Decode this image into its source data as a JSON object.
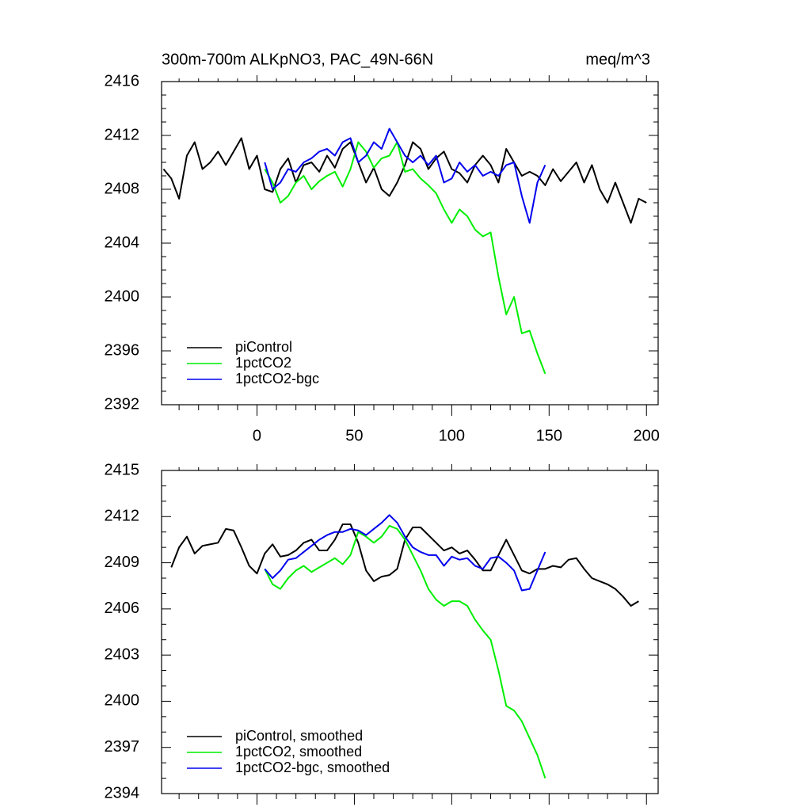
{
  "chart_data": [
    {
      "type": "line",
      "title": "300m-700m ALKpNO3, PAC_49N-66N",
      "units": "meq/m^3",
      "x": [
        -48,
        -44,
        -40,
        -36,
        -32,
        -28,
        -24,
        -20,
        -16,
        -12,
        -8,
        -4,
        0,
        4,
        8,
        12,
        16,
        20,
        24,
        28,
        32,
        36,
        40,
        44,
        48,
        52,
        56,
        60,
        64,
        68,
        72,
        76,
        80,
        84,
        88,
        92,
        96,
        100,
        104,
        108,
        112,
        116,
        120,
        124,
        128,
        132,
        136,
        140,
        144,
        148,
        152,
        156,
        160,
        164,
        168,
        172,
        176,
        180,
        184,
        188,
        192,
        196,
        200
      ],
      "xlim": [
        -49,
        206
      ],
      "xticks": [
        0,
        50,
        100,
        150,
        200
      ],
      "x_tick_labels": true,
      "x_minor_divisions": 5,
      "ylim": [
        2392,
        2416
      ],
      "yticks": [
        2392,
        2396,
        2400,
        2404,
        2408,
        2412,
        2416
      ],
      "y_minor_divisions": 4,
      "legend": "lower left",
      "series": [
        {
          "name": "piControl",
          "color": "#000000",
          "values": [
            2409.5,
            2408.8,
            2407.3,
            2410.5,
            2411.5,
            2409.5,
            2410,
            2410.8,
            2409.8,
            2410.8,
            2411.8,
            2409.5,
            2410.5,
            2408,
            2407.8,
            2409.5,
            2410.3,
            2408.5,
            2409.8,
            2410,
            2409.3,
            2410.5,
            2409.6,
            2411,
            2411.5,
            2410,
            2408.5,
            2409.6,
            2408,
            2407.5,
            2408.5,
            2409.8,
            2411.5,
            2411,
            2409.5,
            2410.3,
            2410.8,
            2409.5,
            2409.2,
            2408.5,
            2409.8,
            2410.5,
            2409.8,
            2408.5,
            2411,
            2410,
            2409,
            2409.3,
            2409,
            2408.3,
            2409.5,
            2408.6,
            2409.3,
            2410,
            2408.5,
            2409.8,
            2408,
            2407,
            2408.5,
            2407,
            2405.5,
            2407.3,
            2407
          ]
        },
        {
          "name": "1pctCO2",
          "color": "#00ee00",
          "values": [
            null,
            null,
            null,
            null,
            null,
            null,
            null,
            null,
            null,
            null,
            null,
            null,
            null,
            2409.5,
            2408.5,
            2407,
            2407.5,
            2408.5,
            2409,
            2408,
            2408.6,
            2409,
            2409.3,
            2408.2,
            2409.5,
            2411.5,
            2410.8,
            2409.6,
            2410.3,
            2410.5,
            2411.5,
            2409.3,
            2409.5,
            2408.8,
            2408.3,
            2407.7,
            2406.5,
            2405.5,
            2406.5,
            2406,
            2405,
            2404.5,
            2404.8,
            2401.5,
            2398.7,
            2400,
            2397.3,
            2397.5,
            2395.8,
            2394.3,
            null,
            null,
            null,
            null,
            null,
            null,
            null,
            null,
            null,
            null,
            null,
            null,
            null
          ]
        },
        {
          "name": "1pctCO2-bgc",
          "color": "#0000ee",
          "values": [
            null,
            null,
            null,
            null,
            null,
            null,
            null,
            null,
            null,
            null,
            null,
            null,
            null,
            2410,
            2408,
            2408.5,
            2409.5,
            2409.3,
            2410,
            2410.3,
            2410.8,
            2411,
            2410.5,
            2411.5,
            2411.8,
            2410,
            2410.5,
            2411.5,
            2411,
            2412.5,
            2411.5,
            2410.5,
            2410,
            2410.5,
            2409.8,
            2410.5,
            2408.5,
            2408.8,
            2410,
            2409.3,
            2409.8,
            2409,
            2409.3,
            2409,
            2409.8,
            2410,
            2407.5,
            2405.5,
            2408.5,
            2409.8,
            null,
            null,
            null,
            null,
            null,
            null,
            null,
            null,
            null,
            null,
            null,
            null,
            null
          ]
        }
      ]
    },
    {
      "type": "line",
      "x": [
        -48,
        -44,
        -40,
        -36,
        -32,
        -28,
        -24,
        -20,
        -16,
        -12,
        -8,
        -4,
        0,
        4,
        8,
        12,
        16,
        20,
        24,
        28,
        32,
        36,
        40,
        44,
        48,
        52,
        56,
        60,
        64,
        68,
        72,
        76,
        80,
        84,
        88,
        92,
        96,
        100,
        104,
        108,
        112,
        116,
        120,
        124,
        128,
        132,
        136,
        140,
        144,
        148,
        152,
        156,
        160,
        164,
        168,
        172,
        176,
        180,
        184,
        188,
        192,
        196,
        200
      ],
      "xlim": [
        -49,
        206
      ],
      "xticks": [
        0,
        50,
        100,
        150,
        200
      ],
      "x_tick_labels": false,
      "x_minor_divisions": 5,
      "ylim": [
        2394,
        2415
      ],
      "yticks": [
        2394,
        2397,
        2400,
        2403,
        2406,
        2409,
        2412,
        2415
      ],
      "y_minor_divisions": 3,
      "legend": "lower left",
      "series": [
        {
          "name": "piControl, smoothed",
          "color": "#000000",
          "values": [
            null,
            2408.7,
            2410,
            2410.7,
            2409.6,
            2410.1,
            2410.2,
            2410.3,
            2411.2,
            2411.1,
            2410,
            2408.8,
            2408.3,
            2409.6,
            2410.2,
            2409.4,
            2409.5,
            2409.8,
            2410.3,
            2410.5,
            2409.8,
            2409.8,
            2410.5,
            2411.5,
            2411.5,
            2410.3,
            2408.5,
            2407.8,
            2408.1,
            2408.2,
            2408.6,
            2410.5,
            2411.3,
            2411.3,
            2410.8,
            2410.3,
            2409.8,
            2410,
            2409.6,
            2409.8,
            2409.2,
            2408.5,
            2408.5,
            2409.5,
            2410.5,
            2409.5,
            2408.5,
            2408.3,
            2408.6,
            2408.6,
            2408.8,
            2408.7,
            2409.2,
            2409.3,
            2408.6,
            2408,
            2407.8,
            2407.6,
            2407.3,
            2406.8,
            2406.2,
            2406.5,
            null
          ]
        },
        {
          "name": "1pctCO2, smoothed",
          "color": "#00ee00",
          "values": [
            null,
            null,
            null,
            null,
            null,
            null,
            null,
            null,
            null,
            null,
            null,
            null,
            null,
            2408.6,
            2407.6,
            2407.3,
            2408,
            2408.5,
            2408.8,
            2408.4,
            2408.7,
            2409,
            2409.3,
            2408.9,
            2409.5,
            2411,
            2410.7,
            2410.3,
            2410.7,
            2411.4,
            2411.2,
            2410.5,
            2409.5,
            2408.5,
            2407.3,
            2406.6,
            2406.2,
            2406.5,
            2406.5,
            2406.2,
            2405.3,
            2404.6,
            2404,
            2402,
            2399.7,
            2399.4,
            2398.7,
            2397.6,
            2396.5,
            2395,
            null,
            null,
            null,
            null,
            null,
            null,
            null,
            null,
            null,
            null,
            null,
            null,
            null
          ]
        },
        {
          "name": "1pctCO2-bgc, smoothed",
          "color": "#0000ee",
          "values": [
            null,
            null,
            null,
            null,
            null,
            null,
            null,
            null,
            null,
            null,
            null,
            null,
            null,
            2408.6,
            2408,
            2408.5,
            2409.2,
            2409.3,
            2409.7,
            2410.1,
            2410.5,
            2410.8,
            2411,
            2411,
            2411.2,
            2411.1,
            2410.8,
            2411.2,
            2411.6,
            2412.1,
            2411.6,
            2410.7,
            2410,
            2409.7,
            2409.5,
            2409.5,
            2408.8,
            2409.4,
            2409.2,
            2409.3,
            2408.8,
            2408.6,
            2409.3,
            2409.4,
            2409,
            2408.5,
            2407.2,
            2407.3,
            2408.5,
            2409.7,
            null,
            null,
            null,
            null,
            null,
            null,
            null,
            null,
            null,
            null,
            null,
            null,
            null
          ]
        }
      ]
    }
  ]
}
